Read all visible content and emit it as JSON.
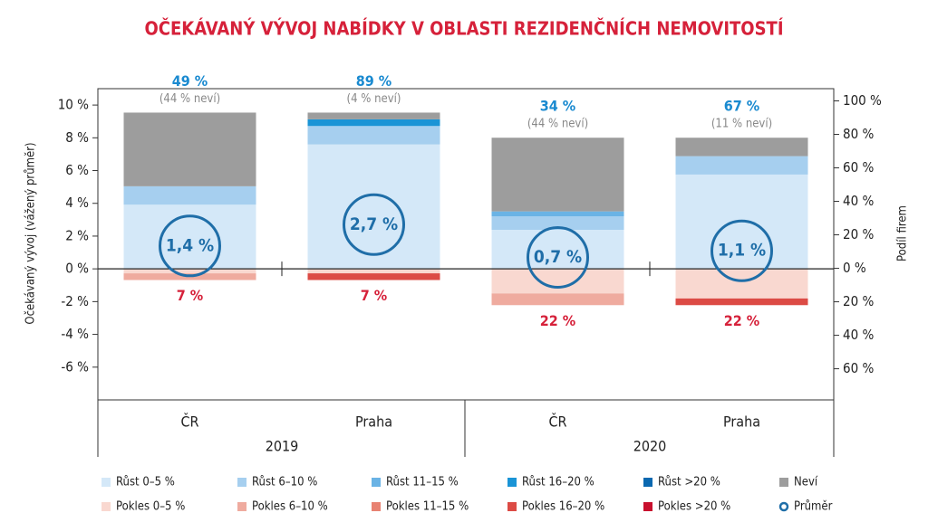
{
  "chart_data": {
    "type": "stacked_bar",
    "title": "OČEKÁVANÝ VÝVOJ NABÍDKY V OBLASTI REZIDENČNÍCH NEMOVITOSTÍ",
    "ylabel": "Očekávaný vývoj (vážený průměr)",
    "y2label": "Podíl firem",
    "categories": [
      "ČR",
      "Praha",
      "ČR",
      "Praha"
    ],
    "groups": [
      "2019",
      "2020"
    ],
    "ylim": [
      -8,
      11
    ],
    "yticks": [
      {
        "value": -6,
        "label": "-6 %"
      },
      {
        "value": -4,
        "label": "-4 %"
      },
      {
        "value": -2,
        "label": "-2 %"
      },
      {
        "value": 0,
        "label": "0 %"
      },
      {
        "value": 2,
        "label": "2 %"
      },
      {
        "value": 4,
        "label": "4 %"
      },
      {
        "value": 6,
        "label": "6 %"
      },
      {
        "value": 8,
        "label": "8 %"
      },
      {
        "value": 10,
        "label": "10 %"
      }
    ],
    "y2lim": [
      -78.6,
      107.3
    ],
    "y2ticks": [
      {
        "value": -60,
        "label": "60 %"
      },
      {
        "value": -40,
        "label": "40 %"
      },
      {
        "value": -20,
        "label": "20 %"
      },
      {
        "value": 0,
        "label": "0 %"
      },
      {
        "value": 20,
        "label": "20 %"
      },
      {
        "value": 40,
        "label": "40 %"
      },
      {
        "value": 60,
        "label": "60 %"
      },
      {
        "value": 80,
        "label": "80 %"
      },
      {
        "value": 100,
        "label": "100 %"
      }
    ],
    "series": [
      {
        "name": "Růst 0–5 %",
        "color": "#d4e8f8",
        "axis": "y2",
        "values": [
          38,
          74,
          23,
          56
        ]
      },
      {
        "name": "Růst 6–10 %",
        "color": "#a6cfef",
        "axis": "y2",
        "values": [
          11,
          11,
          8,
          11
        ]
      },
      {
        "name": "Růst 11–15 %",
        "color": "#6ab3e5",
        "axis": "y2",
        "values": [
          0,
          0,
          3,
          0
        ]
      },
      {
        "name": "Růst 16–20 %",
        "color": "#1a94d6",
        "axis": "y2",
        "values": [
          0,
          4,
          0,
          0
        ]
      },
      {
        "name": "Růst >20 %",
        "color": "#0a68b0",
        "axis": "y2",
        "values": [
          0,
          0,
          0,
          0
        ]
      },
      {
        "name": "Neví",
        "color": "#9d9d9d",
        "axis": "y2",
        "values": [
          44,
          4,
          44,
          11
        ]
      },
      {
        "name": "Pokles 0–5 %",
        "color": "#f9d8d0",
        "axis": "y2",
        "values": [
          -3,
          -3,
          -15,
          -18
        ]
      },
      {
        "name": "Pokles 6–10 %",
        "color": "#efab9f",
        "axis": "y2",
        "values": [
          -4,
          0,
          -7,
          0
        ]
      },
      {
        "name": "Pokles 11–15 %",
        "color": "#e88272",
        "axis": "y2",
        "values": [
          0,
          0,
          0,
          0
        ]
      },
      {
        "name": "Pokles 16–20 %",
        "color": "#dc4b45",
        "axis": "y2",
        "values": [
          0,
          -4,
          0,
          -4
        ]
      },
      {
        "name": "Pokles >20 %",
        "color": "#c8102e",
        "axis": "y2",
        "values": [
          0,
          0,
          0,
          0
        ]
      }
    ],
    "average": {
      "name": "Průměr",
      "color": "#1f6ea8",
      "values": [
        1.4,
        2.7,
        0.7,
        1.1
      ],
      "value_labels": [
        "1,4 %",
        "2,7 %",
        "0,7 %",
        "1,1 %"
      ]
    },
    "growth_labels": [
      "49 %",
      "89 %",
      "34 %",
      "67 %"
    ],
    "dontknow_labels": [
      "(44 % neví)",
      "(4 % neví)",
      "(44 % neví)",
      "(11 % neví)"
    ],
    "decline_labels": [
      "7 %",
      "7 %",
      "22 %",
      "22 %"
    ]
  }
}
